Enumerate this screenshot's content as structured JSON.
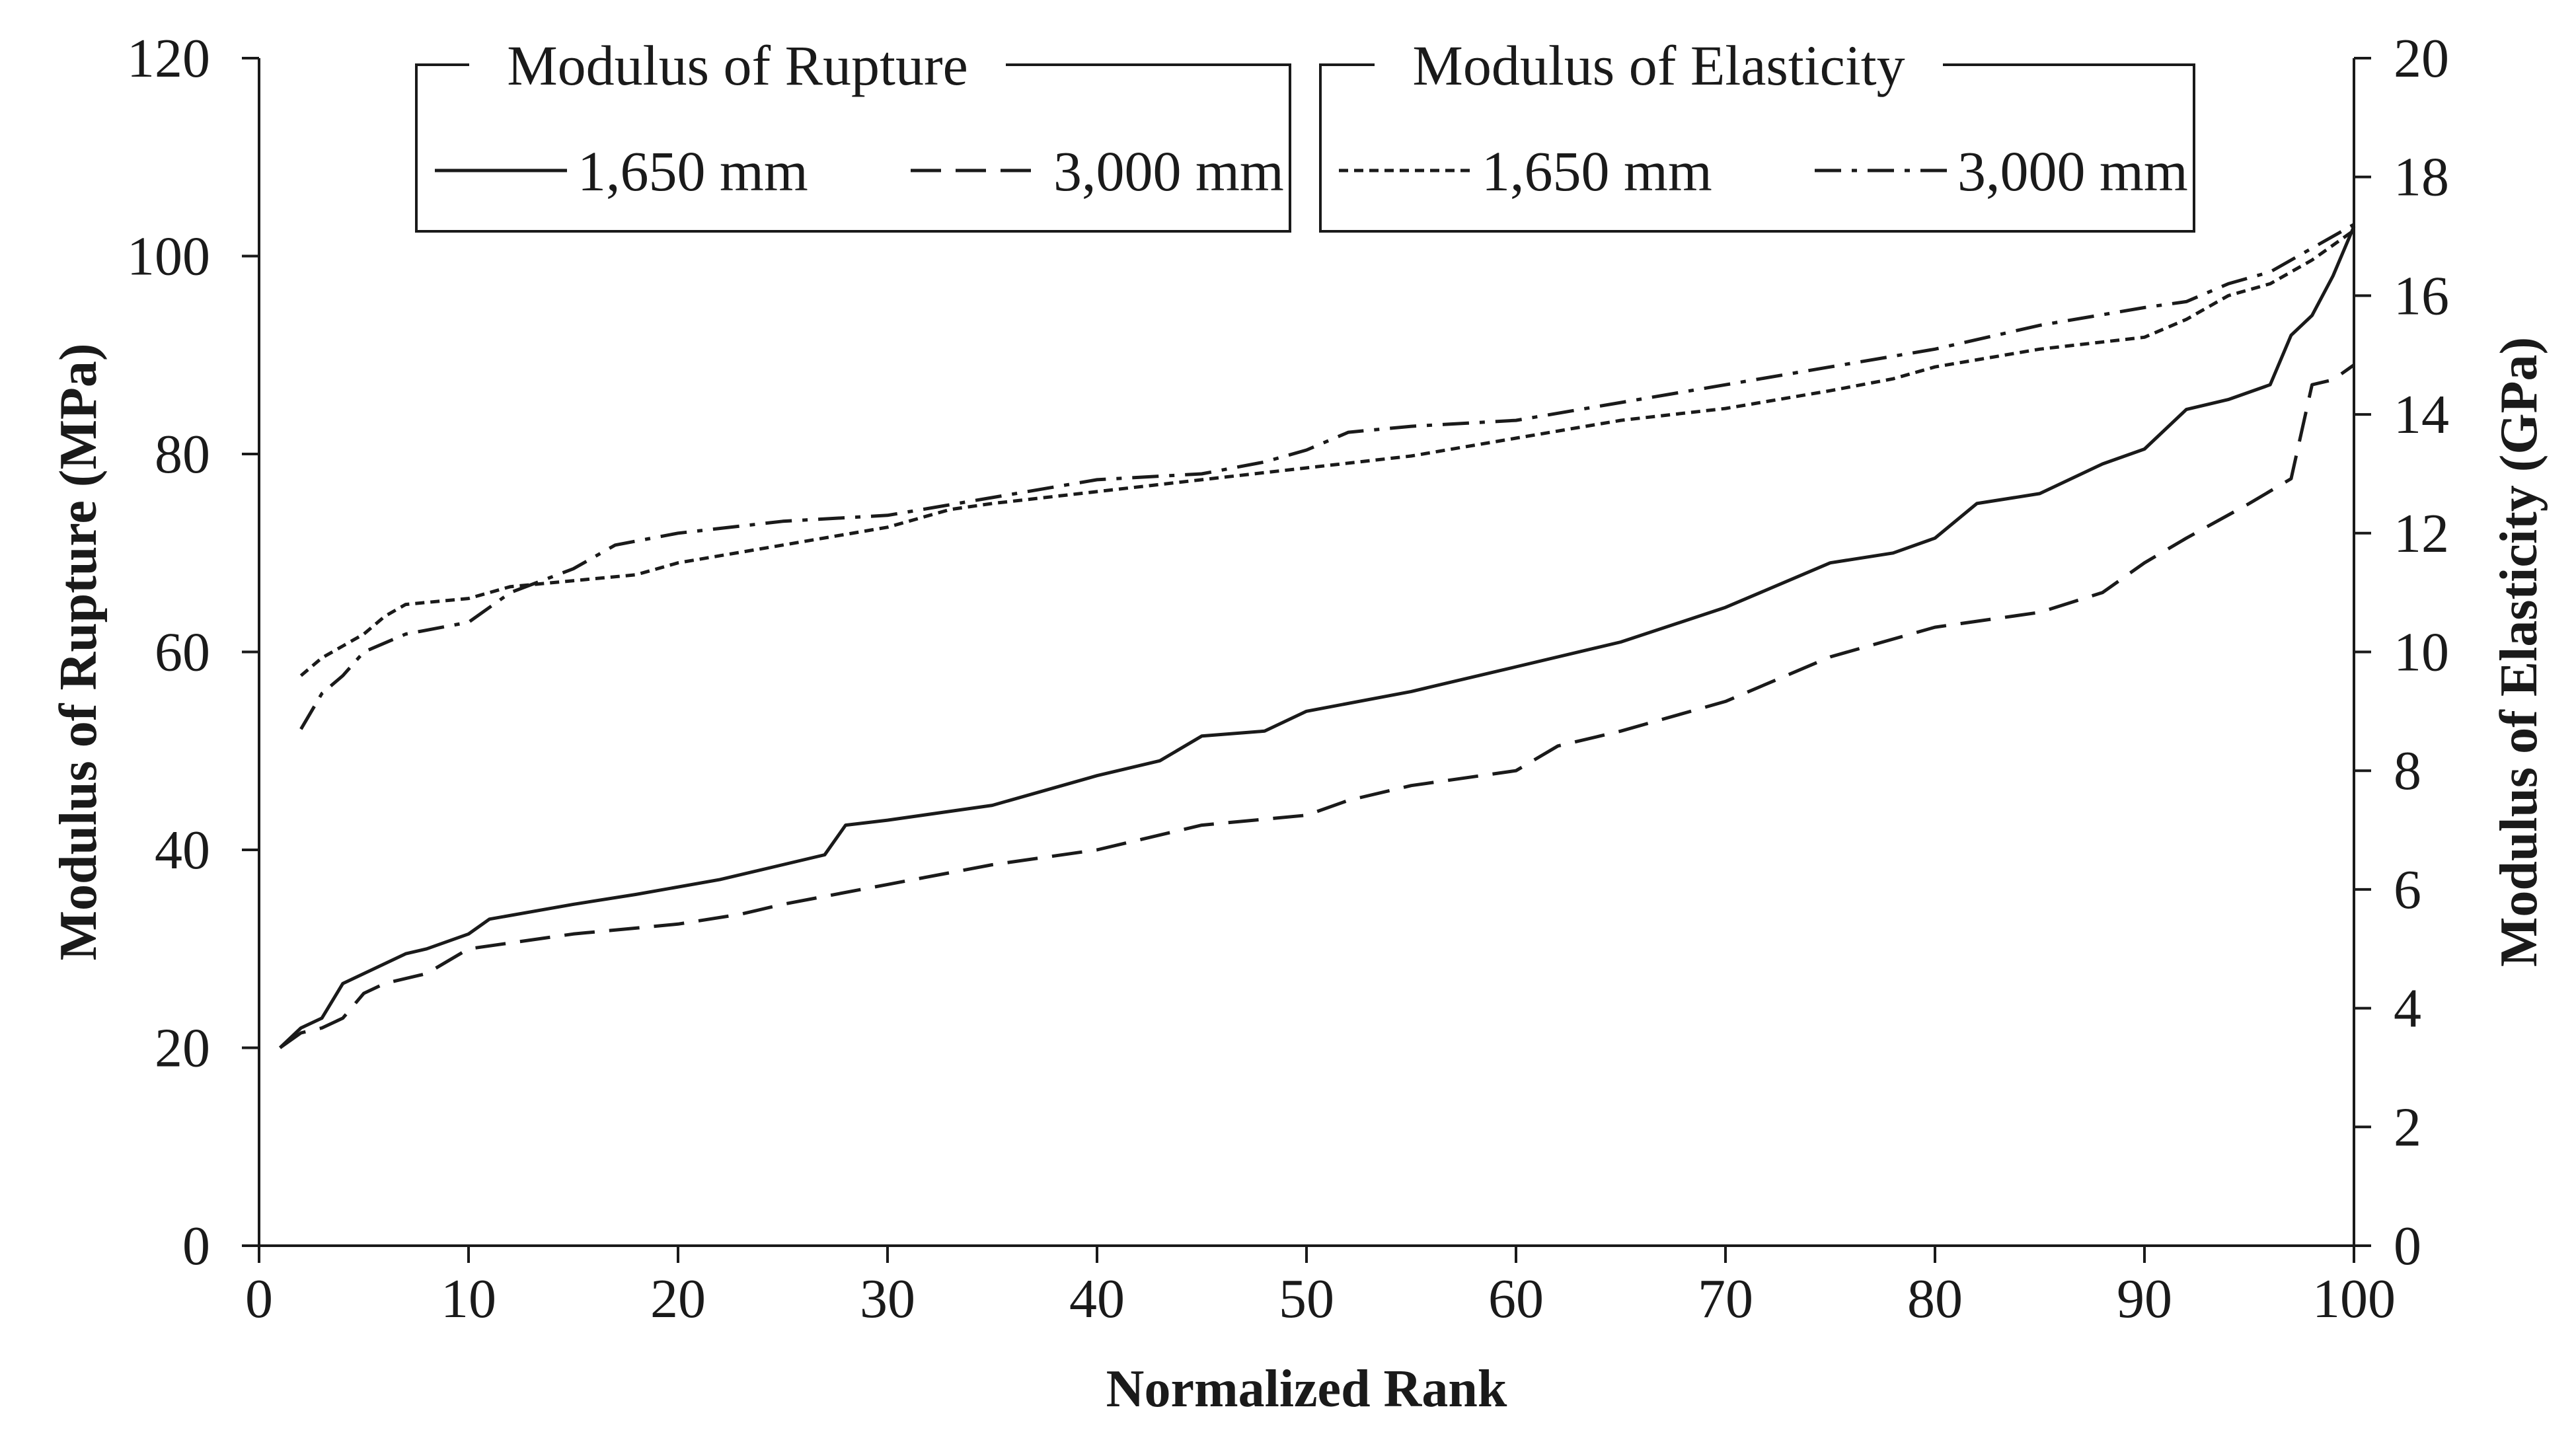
{
  "chart_data": {
    "type": "line",
    "xlabel": "Normalized Rank",
    "ylabel_left": "Modulus of Rupture (MPa)",
    "ylabel_right": "Modulus of Elasticity (GPa)",
    "xlim": [
      0,
      100
    ],
    "ylim_left": [
      0,
      120
    ],
    "ylim_right": [
      0,
      20
    ],
    "x_ticks": [
      "0",
      "10",
      "20",
      "30",
      "40",
      "50",
      "60",
      "70",
      "80",
      "90",
      "100"
    ],
    "y_left_ticks": [
      "0",
      "20",
      "40",
      "60",
      "80",
      "100",
      "120"
    ],
    "y_right_ticks": [
      "0",
      "2",
      "4",
      "6",
      "8",
      "10",
      "12",
      "14",
      "16",
      "18",
      "20"
    ],
    "grid": false,
    "legend": {
      "placement": "top-left",
      "groups": [
        {
          "title": "Modulus of Rupture",
          "entries": [
            "1,650 mm",
            "3,000 mm"
          ]
        },
        {
          "title": "Modulus of Elasticity",
          "entries": [
            "1,650 mm",
            "3,000 mm"
          ]
        }
      ]
    },
    "series": [
      {
        "name": "1,650 mm",
        "group": "Modulus of Rupture",
        "axis": "left",
        "dash": "solid",
        "color": "#1a1a1a",
        "points": [
          [
            1,
            20
          ],
          [
            2,
            22
          ],
          [
            3,
            23
          ],
          [
            4,
            26.5
          ],
          [
            5,
            27.5
          ],
          [
            6,
            28.5
          ],
          [
            7,
            29.5
          ],
          [
            8,
            30
          ],
          [
            10,
            31.5
          ],
          [
            11,
            33
          ],
          [
            15,
            34.5
          ],
          [
            18,
            35.5
          ],
          [
            22,
            37
          ],
          [
            25,
            38.5
          ],
          [
            27,
            39.5
          ],
          [
            28,
            42.5
          ],
          [
            30,
            43
          ],
          [
            35,
            44.5
          ],
          [
            40,
            47.5
          ],
          [
            43,
            49
          ],
          [
            45,
            51.5
          ],
          [
            48,
            52
          ],
          [
            50,
            54
          ],
          [
            55,
            56
          ],
          [
            60,
            58.5
          ],
          [
            65,
            61
          ],
          [
            70,
            64.5
          ],
          [
            75,
            69
          ],
          [
            78,
            70
          ],
          [
            80,
            71.5
          ],
          [
            82,
            75
          ],
          [
            85,
            76
          ],
          [
            88,
            79
          ],
          [
            90,
            80.5
          ],
          [
            92,
            84.5
          ],
          [
            94,
            85.5
          ],
          [
            96,
            87
          ],
          [
            97,
            92
          ],
          [
            98,
            94
          ],
          [
            99,
            98
          ],
          [
            100,
            103
          ]
        ]
      },
      {
        "name": "3,000 mm",
        "group": "Modulus of Rupture",
        "axis": "left",
        "dash": "long-dash",
        "color": "#1a1a1a",
        "points": [
          [
            1,
            20
          ],
          [
            2,
            21.5
          ],
          [
            3,
            22
          ],
          [
            4,
            23
          ],
          [
            5,
            25.5
          ],
          [
            6,
            26.5
          ],
          [
            8,
            27.5
          ],
          [
            10,
            30
          ],
          [
            15,
            31.5
          ],
          [
            20,
            32.5
          ],
          [
            23,
            33.5
          ],
          [
            25,
            34.5
          ],
          [
            30,
            36.5
          ],
          [
            35,
            38.5
          ],
          [
            40,
            40
          ],
          [
            45,
            42.5
          ],
          [
            50,
            43.5
          ],
          [
            52,
            45
          ],
          [
            55,
            46.5
          ],
          [
            60,
            48
          ],
          [
            62,
            50.5
          ],
          [
            65,
            52
          ],
          [
            70,
            55
          ],
          [
            75,
            59.5
          ],
          [
            80,
            62.5
          ],
          [
            85,
            64
          ],
          [
            88,
            66
          ],
          [
            90,
            69
          ],
          [
            92,
            71.5
          ],
          [
            95,
            75
          ],
          [
            97,
            77.5
          ],
          [
            98,
            87
          ],
          [
            99,
            87.5
          ],
          [
            100,
            89
          ]
        ]
      },
      {
        "name": "1,650 mm",
        "group": "Modulus of Elasticity",
        "axis": "right",
        "dash": "short-dash",
        "color": "#1a1a1a",
        "points": [
          [
            2,
            9.6
          ],
          [
            3,
            9.9
          ],
          [
            4,
            10.1
          ],
          [
            5,
            10.3
          ],
          [
            6,
            10.6
          ],
          [
            7,
            10.8
          ],
          [
            10,
            10.9
          ],
          [
            12,
            11.1
          ],
          [
            15,
            11.2
          ],
          [
            18,
            11.3
          ],
          [
            20,
            11.5
          ],
          [
            25,
            11.8
          ],
          [
            30,
            12.1
          ],
          [
            33,
            12.4
          ],
          [
            35,
            12.5
          ],
          [
            40,
            12.7
          ],
          [
            45,
            12.9
          ],
          [
            50,
            13.1
          ],
          [
            55,
            13.3
          ],
          [
            60,
            13.6
          ],
          [
            65,
            13.9
          ],
          [
            70,
            14.1
          ],
          [
            75,
            14.4
          ],
          [
            78,
            14.6
          ],
          [
            80,
            14.8
          ],
          [
            85,
            15.1
          ],
          [
            90,
            15.3
          ],
          [
            92,
            15.6
          ],
          [
            94,
            16
          ],
          [
            96,
            16.2
          ],
          [
            98,
            16.6
          ],
          [
            100,
            17.1
          ]
        ]
      },
      {
        "name": "3,000 mm",
        "group": "Modulus of Elasticity",
        "axis": "right",
        "dash": "dash-dot",
        "color": "#1a1a1a",
        "points": [
          [
            2,
            8.7
          ],
          [
            3,
            9.3
          ],
          [
            4,
            9.6
          ],
          [
            5,
            10
          ],
          [
            7,
            10.3
          ],
          [
            10,
            10.5
          ],
          [
            12,
            11
          ],
          [
            15,
            11.4
          ],
          [
            17,
            11.8
          ],
          [
            20,
            12
          ],
          [
            25,
            12.2
          ],
          [
            30,
            12.3
          ],
          [
            35,
            12.6
          ],
          [
            40,
            12.9
          ],
          [
            45,
            13
          ],
          [
            48,
            13.2
          ],
          [
            50,
            13.4
          ],
          [
            52,
            13.7
          ],
          [
            55,
            13.8
          ],
          [
            60,
            13.9
          ],
          [
            65,
            14.2
          ],
          [
            70,
            14.5
          ],
          [
            75,
            14.8
          ],
          [
            80,
            15.1
          ],
          [
            85,
            15.5
          ],
          [
            90,
            15.8
          ],
          [
            92,
            15.9
          ],
          [
            94,
            16.2
          ],
          [
            96,
            16.4
          ],
          [
            98,
            16.8
          ],
          [
            100,
            17.2
          ]
        ]
      }
    ]
  }
}
